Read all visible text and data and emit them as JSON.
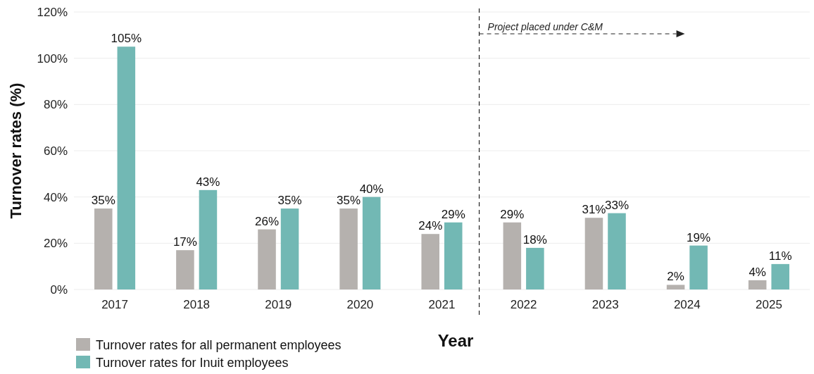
{
  "chart_data": {
    "type": "bar",
    "xlabel": "Year",
    "ylabel": "Turnover rates (%)",
    "categories": [
      "2017",
      "2018",
      "2019",
      "2020",
      "2021",
      "2022",
      "2023",
      "2024",
      "2025"
    ],
    "series": [
      {
        "name": "Turnover rates for all permanent employees",
        "color": "#b5b1ae",
        "values": [
          35,
          17,
          26,
          35,
          24,
          29,
          31,
          2,
          4
        ],
        "value_labels": [
          "35%",
          "17%",
          "26%",
          "35%",
          "24%",
          "29%",
          "31%",
          "2%",
          "4%"
        ]
      },
      {
        "name": "Turnover rates for Inuit employees",
        "color": "#72b8b4",
        "values": [
          105,
          43,
          35,
          40,
          29,
          18,
          33,
          19,
          11
        ],
        "value_labels": [
          "105%",
          "43%",
          "35%",
          "40%",
          "29%",
          "18%",
          "33%",
          "19%",
          "11%"
        ]
      }
    ],
    "ylim": [
      0,
      120
    ],
    "yticks": [
      {
        "value": 0,
        "label": "0%"
      },
      {
        "value": 20,
        "label": "20%"
      },
      {
        "value": 40,
        "label": "40%"
      },
      {
        "value": 60,
        "label": "60%"
      },
      {
        "value": 80,
        "label": "80%"
      },
      {
        "value": 100,
        "label": "100%"
      },
      {
        "value": 120,
        "label": "120%"
      }
    ],
    "grid": "y",
    "legend": "bottom left",
    "ref_lines": [
      {
        "axis": "x",
        "value": "2022",
        "label": "Project placed under C&M",
        "line_style": "dashed",
        "color": "#222222"
      }
    ]
  }
}
